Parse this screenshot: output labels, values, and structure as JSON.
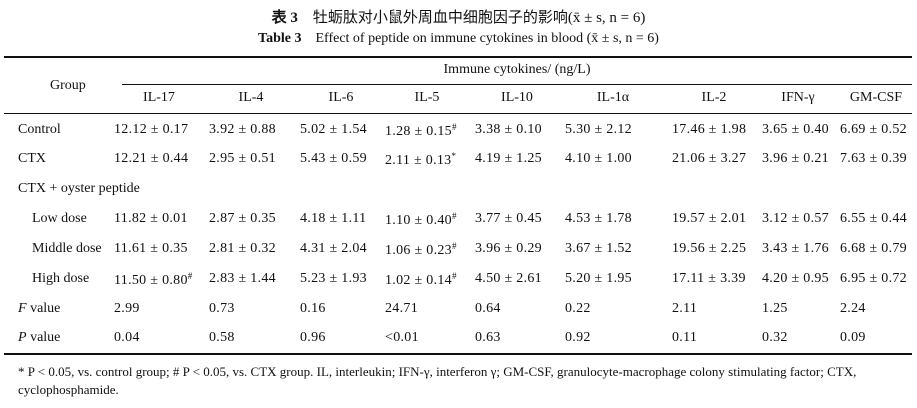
{
  "caption": {
    "cn_label": "表 3",
    "cn_text": "牡蛎肽对小鼠外周血中细胞因子的影响(x̄ ± s, n = 6)",
    "en_label": "Table 3",
    "en_text": "Effect of peptide on immune cytokines in blood (x̄ ± s, n = 6)"
  },
  "header": {
    "group": "Group",
    "immune": "Immune cytokines/ (ng/L)",
    "columns": [
      "IL-17",
      "IL-4",
      "IL-6",
      "IL-5",
      "IL-10",
      "IL-1α",
      "IL-2",
      "IFN-γ",
      "GM-CSF"
    ]
  },
  "rows": [
    {
      "label": "Control",
      "values": [
        "12.12 ± 0.17",
        "3.92 ± 0.88",
        "5.02 ± 1.54",
        "1.28 ± 0.15",
        "3.38 ± 0.10",
        "5.30 ± 2.12",
        "17.46 ± 1.98",
        "3.65 ± 0.40",
        "6.69 ± 0.52"
      ],
      "marks": [
        "",
        "",
        "",
        "#",
        "",
        "",
        "",
        "",
        ""
      ]
    },
    {
      "label": "CTX",
      "values": [
        "12.21 ± 0.44",
        "2.95 ± 0.51",
        "5.43 ± 0.59",
        "2.11 ± 0.13",
        "4.19 ± 1.25",
        "4.10 ± 1.00",
        "21.06 ± 3.27",
        "3.96 ± 0.21",
        "7.63 ± 0.39"
      ],
      "marks": [
        "",
        "",
        "",
        "*",
        "",
        "",
        "",
        "",
        ""
      ]
    },
    {
      "label": "CTX + oyster peptide",
      "values": [],
      "marks": []
    },
    {
      "label": "Low dose",
      "values": [
        "11.82 ± 0.01",
        "2.87 ± 0.35",
        "4.18 ± 1.11",
        "1.10 ± 0.40",
        "3.77 ± 0.45",
        "4.53 ± 1.78",
        "19.57 ± 2.01",
        "3.12 ± 0.57",
        "6.55 ± 0.44"
      ],
      "marks": [
        "",
        "",
        "",
        "#",
        "",
        "",
        "",
        "",
        ""
      ]
    },
    {
      "label": "Middle dose",
      "values": [
        "11.61 ± 0.35",
        "2.81 ± 0.32",
        "4.31 ± 2.04",
        "1.06 ± 0.23",
        "3.96 ± 0.29",
        "3.67 ± 1.52",
        "19.56 ± 2.25",
        "3.43 ± 1.76",
        "6.68 ± 0.79"
      ],
      "marks": [
        "",
        "",
        "",
        "#",
        "",
        "",
        "",
        "",
        ""
      ]
    },
    {
      "label": "High dose",
      "values": [
        "11.50 ± 0.80",
        "2.83 ± 1.44",
        "5.23 ± 1.93",
        "1.02 ± 0.14",
        "4.50 ± 2.61",
        "5.20 ± 1.95",
        "17.11 ± 3.39",
        "4.20 ± 0.95",
        "6.95 ± 0.72"
      ],
      "marks": [
        "#",
        "",
        "",
        "#",
        "",
        "",
        "",
        "",
        ""
      ]
    },
    {
      "label_italic": "F",
      "label": " value",
      "values": [
        "2.99",
        "0.73",
        "0.16",
        "24.71",
        "0.64",
        "0.22",
        "2.11",
        "1.25",
        "2.24"
      ],
      "marks": [
        "",
        "",
        "",
        "",
        "",
        "",
        "",
        "",
        ""
      ]
    },
    {
      "label_italic": "P",
      "label": " value",
      "values": [
        "0.04",
        "0.58",
        "0.96",
        "<0.01",
        "0.63",
        "0.92",
        "0.11",
        "0.32",
        "0.09"
      ],
      "marks": [
        "",
        "",
        "",
        "",
        "",
        "",
        "",
        "",
        ""
      ]
    }
  ],
  "footnote": "* P < 0.05, vs. control group; # P < 0.05, vs. CTX group. IL, interleukin; IFN-γ, interferon γ; GM-CSF, granulocyte-macrophage colony stimulating factor; CTX, cyclophosphamide."
}
